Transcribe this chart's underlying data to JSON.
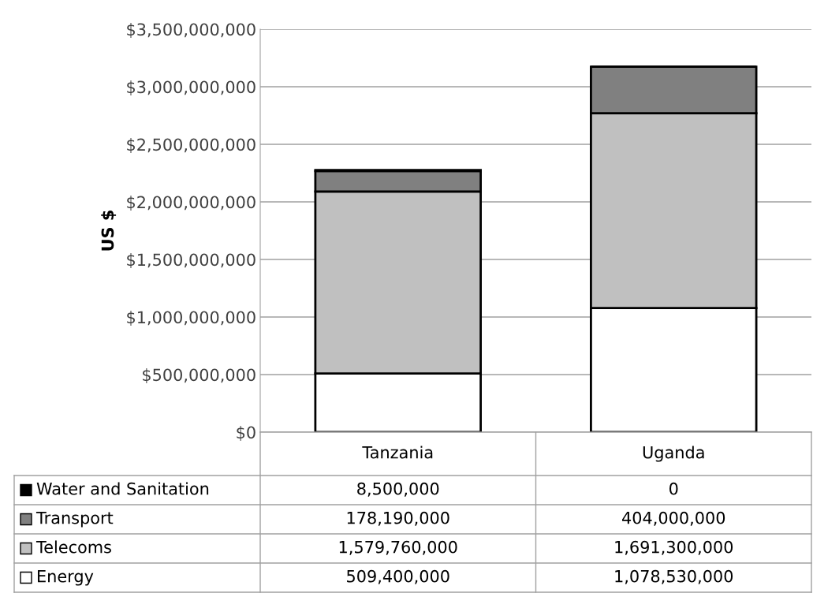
{
  "chart_data": {
    "type": "bar",
    "stacked": true,
    "ylabel": "US $",
    "categories": [
      "Tanzania",
      "Uganda"
    ],
    "series": [
      {
        "name": "Energy",
        "color": "#ffffff",
        "values": [
          509400000,
          1078530000
        ],
        "value_labels": [
          "509,400,000",
          "1,078,530,000"
        ]
      },
      {
        "name": "Telecoms",
        "color": "#c0c0c0",
        "values": [
          1579760000,
          1691300000
        ],
        "value_labels": [
          "1,579,760,000",
          "1,691,300,000"
        ]
      },
      {
        "name": "Transport",
        "color": "#808080",
        "values": [
          178190000,
          404000000
        ],
        "value_labels": [
          "178,190,000",
          "404,000,000"
        ]
      },
      {
        "name": "Water and Sanitation",
        "color": "#000000",
        "values": [
          8500000,
          0
        ],
        "value_labels": [
          "8,500,000",
          "0"
        ]
      }
    ],
    "ylim": [
      0,
      3500000000
    ],
    "yticks": [
      {
        "value": 0,
        "label": "$0"
      },
      {
        "value": 500000000,
        "label": "$500,000,000"
      },
      {
        "value": 1000000000,
        "label": "$1,000,000,000"
      },
      {
        "value": 1500000000,
        "label": "$1,500,000,000"
      },
      {
        "value": 2000000000,
        "label": "$2,000,000,000"
      },
      {
        "value": 2500000000,
        "label": "$2,500,000,000"
      },
      {
        "value": 3000000000,
        "label": "$3,000,000,000"
      },
      {
        "value": 3500000000,
        "label": "$3,500,000,000"
      }
    ],
    "grid": "y",
    "legend": "bottom"
  }
}
